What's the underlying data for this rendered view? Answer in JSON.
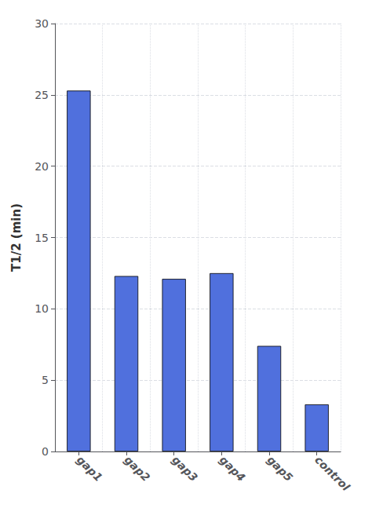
{
  "chart_data": {
    "type": "bar",
    "categories": [
      "gap1",
      "gap2",
      "gap3",
      "gap4",
      "gap5",
      "control"
    ],
    "values": [
      25.3,
      12.3,
      12.1,
      12.5,
      7.4,
      3.3
    ],
    "ylabel": "T1/2 (min)",
    "ylim": [
      0,
      30
    ],
    "yticks": [
      0,
      5,
      10,
      15,
      20,
      25,
      30
    ],
    "grid": true
  }
}
